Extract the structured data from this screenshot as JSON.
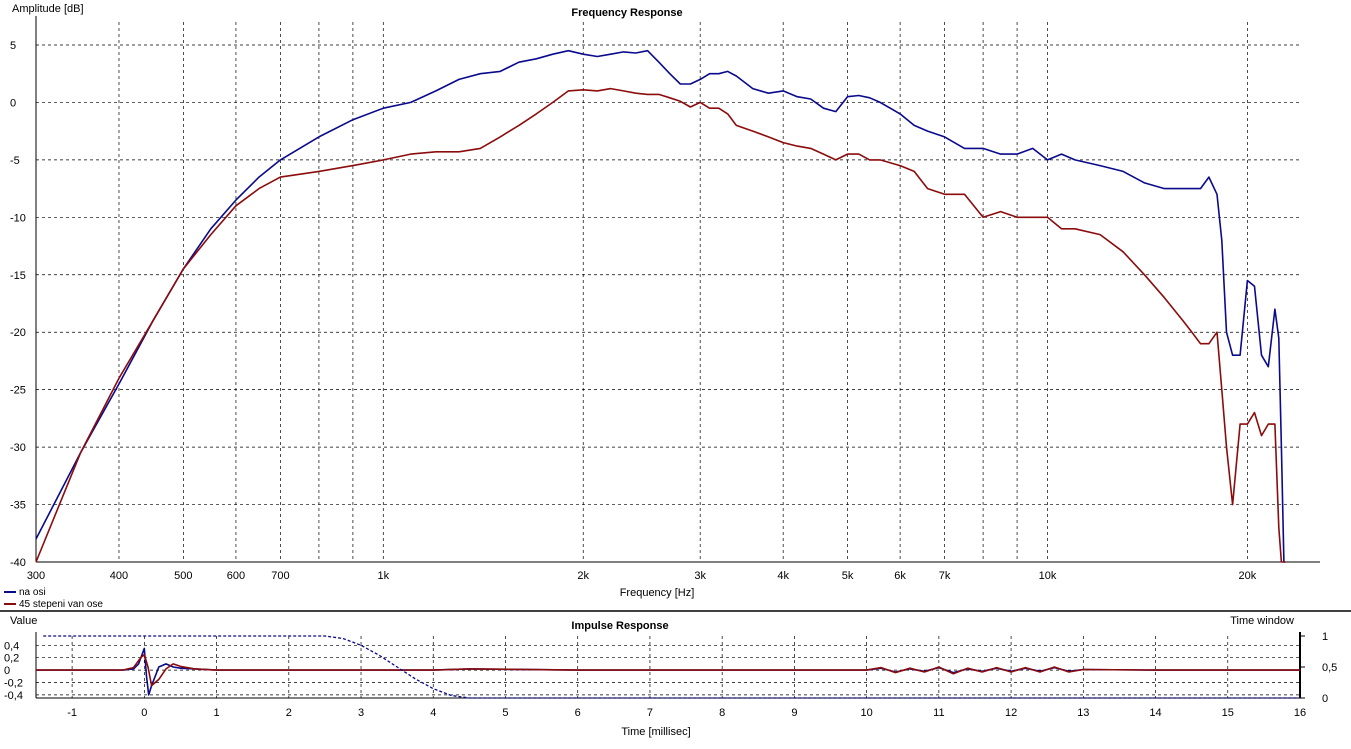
{
  "chart_data": [
    {
      "type": "line",
      "title": "Frequency Response",
      "xlabel": "Frequency [Hz]",
      "ylabel": "Amplitude [dB]",
      "xscale": "log",
      "xlim": [
        300,
        24000
      ],
      "ylim": [
        -40,
        7
      ],
      "grid": true,
      "legend": "bottom-left",
      "x_ticks": [
        300,
        400,
        500,
        600,
        700,
        1000,
        2000,
        3000,
        4000,
        5000,
        6000,
        7000,
        10000,
        20000
      ],
      "x_tick_labels": [
        "300",
        "400",
        "500",
        "600",
        "700",
        "1k",
        "2k",
        "3k",
        "4k",
        "5k",
        "6k",
        "7k",
        "10k",
        "20k"
      ],
      "y_ticks": [
        5,
        0,
        -5,
        -10,
        -15,
        -20,
        -25,
        -30,
        -35,
        -40
      ],
      "y_tick_labels": [
        "5",
        "0",
        "-5",
        "-10",
        "-15",
        "-20",
        "-25",
        "-30",
        "-35",
        "-40"
      ],
      "series": [
        {
          "name": "na osi",
          "color": "#0a0a8c",
          "x": [
            300,
            350,
            400,
            450,
            500,
            550,
            600,
            650,
            700,
            800,
            900,
            1000,
            1100,
            1200,
            1300,
            1400,
            1500,
            1600,
            1700,
            1800,
            1900,
            2000,
            2100,
            2200,
            2300,
            2400,
            2500,
            2600,
            2700,
            2800,
            2900,
            3000,
            3100,
            3200,
            3300,
            3400,
            3600,
            3800,
            4000,
            4200,
            4400,
            4600,
            4800,
            5000,
            5200,
            5400,
            5600,
            6000,
            6300,
            6600,
            7000,
            7500,
            8000,
            8500,
            9000,
            9500,
            10000,
            10500,
            11000,
            12000,
            13000,
            14000,
            15000,
            16000,
            16500,
            17000,
            17500,
            18000,
            18300,
            18600,
            19000,
            19500,
            20000,
            20500,
            21000,
            21500,
            22000,
            22300,
            22500,
            22700,
            22800
          ],
          "y": [
            -38,
            -30.5,
            -24.5,
            -19,
            -14.5,
            -11,
            -8.5,
            -6.5,
            -5,
            -3,
            -1.5,
            -0.5,
            0,
            1,
            2,
            2.5,
            2.7,
            3.5,
            3.8,
            4.2,
            4.5,
            4.2,
            4,
            4.2,
            4.4,
            4.3,
            4.5,
            3.5,
            2.5,
            1.6,
            1.6,
            2,
            2.5,
            2.5,
            2.7,
            2.3,
            1.2,
            0.8,
            1,
            0.5,
            0.3,
            -0.5,
            -0.8,
            0.5,
            0.6,
            0.4,
            0,
            -1,
            -2,
            -2.5,
            -3,
            -4,
            -4,
            -4.5,
            -4.5,
            -4,
            -5,
            -4.5,
            -5,
            -5.5,
            -6,
            -7,
            -7.5,
            -7.5,
            -7.5,
            -7.5,
            -6.5,
            -8,
            -12,
            -20,
            -22,
            -22,
            -15.5,
            -16,
            -22,
            -23,
            -18,
            -20.5,
            -30,
            -40,
            -40
          ]
        },
        {
          "name": "45 stepeni van ose",
          "color": "#8b0c0c",
          "x": [
            300,
            350,
            400,
            450,
            500,
            550,
            600,
            650,
            700,
            800,
            900,
            1000,
            1100,
            1200,
            1300,
            1400,
            1500,
            1600,
            1700,
            1800,
            1900,
            2000,
            2100,
            2200,
            2300,
            2400,
            2500,
            2600,
            2700,
            2800,
            2900,
            3000,
            3100,
            3200,
            3300,
            3400,
            3600,
            3800,
            4000,
            4200,
            4400,
            4600,
            4800,
            5000,
            5200,
            5400,
            5600,
            6000,
            6300,
            6600,
            7000,
            7500,
            8000,
            8500,
            9000,
            9500,
            10000,
            10500,
            11000,
            12000,
            13000,
            14000,
            15000,
            16000,
            16500,
            17000,
            17500,
            18000,
            18300,
            18600,
            19000,
            19500,
            20000,
            20500,
            21000,
            21500,
            22000,
            22300,
            22500,
            22700,
            22800
          ],
          "y": [
            -40,
            -30.5,
            -24,
            -19,
            -14.5,
            -11.5,
            -9,
            -7.5,
            -6.5,
            -6,
            -5.5,
            -5,
            -4.5,
            -4.3,
            -4.3,
            -4,
            -3,
            -2,
            -1,
            0,
            1,
            1.1,
            1,
            1.2,
            1,
            0.8,
            0.7,
            0.7,
            0.4,
            0.1,
            -0.4,
            0,
            -0.5,
            -0.5,
            -1,
            -2,
            -2.5,
            -3,
            -3.5,
            -3.8,
            -4,
            -4.5,
            -5,
            -4.5,
            -4.5,
            -5,
            -5,
            -5.5,
            -6,
            -7.5,
            -8,
            -8,
            -10,
            -9.5,
            -10,
            -10,
            -10,
            -11,
            -11,
            -11.5,
            -13,
            -15,
            -17,
            -19,
            -20,
            -21,
            -21,
            -20,
            -25,
            -30,
            -35,
            -28,
            -28,
            -27,
            -29,
            -28,
            -28,
            -37,
            -40,
            -40,
            -40
          ]
        }
      ]
    },
    {
      "type": "line",
      "title": "Impulse Response",
      "xlabel": "Time [millisec]",
      "ylabel": "Value",
      "y2label": "Time window",
      "xlim": [
        -1.5,
        16
      ],
      "ylim": [
        -0.45,
        0.55
      ],
      "y2lim": [
        0,
        1
      ],
      "grid": true,
      "x_ticks": [
        -1,
        0,
        1,
        2,
        3,
        4,
        5,
        6,
        7,
        8,
        9,
        10,
        11,
        12,
        13,
        14,
        15,
        16
      ],
      "x_tick_labels": [
        "-1",
        "0",
        "1",
        "2",
        "3",
        "4",
        "5",
        "6",
        "7",
        "8",
        "9",
        "10",
        "11",
        "12",
        "13",
        "14",
        "15",
        "16"
      ],
      "y_ticks": [
        0.4,
        0.2,
        0,
        -0.2,
        -0.4
      ],
      "y_tick_labels": [
        "0,4",
        "0,2",
        "0",
        "-0,2",
        "-0,4"
      ],
      "y2_ticks": [
        1,
        0.5,
        0
      ],
      "y2_tick_labels": [
        "1",
        "0,5",
        "0"
      ],
      "series": [
        {
          "name": "na osi",
          "color": "#0a0a8c",
          "x": [
            -1.5,
            -0.3,
            -0.15,
            -0.08,
            0,
            0.03,
            0.06,
            0.1,
            0.15,
            0.2,
            0.3,
            0.4,
            0.5,
            0.7,
            1,
            2,
            4,
            4.5,
            6,
            8,
            10,
            10.2,
            10.4,
            10.6,
            10.8,
            11,
            11.2,
            11.4,
            11.6,
            11.8,
            12,
            12.2,
            12.4,
            12.6,
            12.8,
            13,
            14,
            15,
            16
          ],
          "y": [
            0,
            0,
            0.02,
            0.1,
            0.35,
            -0.1,
            -0.4,
            -0.25,
            -0.1,
            0.05,
            0.1,
            0.05,
            0.03,
            0.02,
            0,
            0,
            0,
            0.02,
            0,
            0,
            0,
            0.03,
            -0.03,
            0.02,
            -0.02,
            0.04,
            -0.04,
            0.02,
            -0.02,
            0.03,
            -0.02,
            0.03,
            -0.02,
            0.04,
            -0.02,
            0.01,
            0,
            0,
            0
          ]
        },
        {
          "name": "45 stepeni van ose",
          "color": "#8b0c0c",
          "x": [
            -1.5,
            -0.3,
            -0.15,
            -0.05,
            0,
            0.05,
            0.1,
            0.2,
            0.3,
            0.4,
            0.5,
            0.7,
            1,
            2,
            4,
            4.5,
            6,
            8,
            10,
            10.2,
            10.4,
            10.6,
            10.8,
            11,
            11.2,
            11.4,
            11.6,
            11.8,
            12,
            12.2,
            12.4,
            12.6,
            12.8,
            13,
            14,
            15,
            16
          ],
          "y": [
            0,
            0,
            0.04,
            0.2,
            0.25,
            0.05,
            -0.25,
            -0.15,
            0.02,
            0.1,
            0.06,
            0.02,
            0,
            0,
            0,
            0.02,
            0,
            0,
            0,
            0.04,
            -0.04,
            0.03,
            -0.03,
            0.05,
            -0.06,
            0.03,
            -0.03,
            0.04,
            -0.03,
            0.04,
            -0.03,
            0.05,
            -0.03,
            0.01,
            0,
            0,
            0
          ]
        },
        {
          "name": "Time window",
          "color": "#0a0a8c",
          "dash": true,
          "axis": "y2",
          "x": [
            -1.4,
            0,
            2.5,
            2.75,
            3,
            3.25,
            3.5,
            3.75,
            4,
            4.25,
            4.5,
            16
          ],
          "y": [
            1,
            1,
            1,
            0.96,
            0.85,
            0.69,
            0.5,
            0.31,
            0.15,
            0.04,
            0,
            0
          ]
        }
      ]
    }
  ]
}
